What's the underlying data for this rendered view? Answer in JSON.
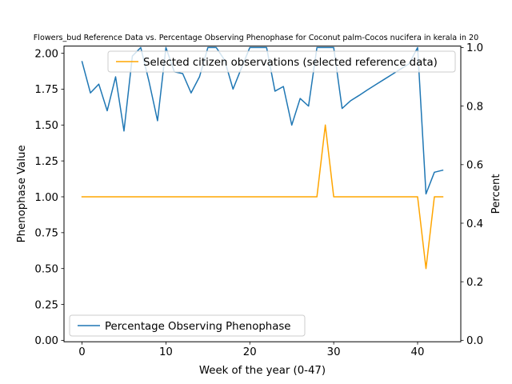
{
  "chart_data": {
    "type": "line",
    "title": "Flowers_bud Reference Data vs. Percentage Observing Phenophase for Coconut palm-Cocos nucifera in kerala in 20",
    "xlabel": "Week of the year (0-47)",
    "ylabel_left": "Phenophase Value",
    "ylabel_right": "Percent",
    "xlim": [
      -2.15,
      45.15
    ],
    "ylim_left": [
      -0.01,
      2.05
    ],
    "ylim_right": [
      -0.005,
      1.005
    ],
    "x_ticks": [
      0,
      10,
      20,
      30,
      40
    ],
    "y_ticks_left": [
      0.0,
      0.25,
      0.5,
      0.75,
      1.0,
      1.25,
      1.5,
      1.75,
      2.0
    ],
    "y_ticks_right": [
      0.0,
      0.2,
      0.4,
      0.6,
      0.8,
      1.0
    ],
    "x_tick_labels": [
      "0",
      "10",
      "20",
      "30",
      "40"
    ],
    "y_tick_labels_left": [
      "0.00",
      "0.25",
      "0.50",
      "0.75",
      "1.00",
      "1.25",
      "1.50",
      "1.75",
      "2.00"
    ],
    "y_tick_labels_right": [
      "0.0",
      "0.2",
      "0.4",
      "0.6",
      "0.8",
      "1.0"
    ],
    "grid": false,
    "series": [
      {
        "name": "Selected citizen observations (selected reference data)",
        "axis": "left",
        "color": "#ffa500",
        "legend_position": "upper-right",
        "x": [
          0,
          1,
          2,
          3,
          4,
          5,
          6,
          7,
          8,
          9,
          10,
          11,
          12,
          13,
          14,
          15,
          16,
          17,
          18,
          19,
          20,
          21,
          22,
          23,
          24,
          25,
          26,
          27,
          28,
          29,
          30,
          31,
          32,
          33,
          34,
          35,
          36,
          37,
          38,
          39,
          40,
          41,
          42,
          43
        ],
        "values": [
          1,
          1,
          1,
          1,
          1,
          1,
          1,
          1,
          1,
          1,
          1,
          1,
          1,
          1,
          1,
          1,
          1,
          1,
          1,
          1,
          1,
          1,
          1,
          1,
          1,
          1,
          1,
          1,
          1,
          1.5,
          1,
          1,
          1,
          1,
          1,
          1,
          1,
          1,
          1,
          1,
          1,
          0.5,
          1,
          1
        ]
      },
      {
        "name": "Percentage Observing Phenophase",
        "axis": "right",
        "color": "#1f77b4",
        "legend_position": "lower-left",
        "x": [
          0,
          1,
          2,
          3,
          4,
          5,
          6,
          7,
          8,
          9,
          10,
          11,
          12,
          13,
          14,
          15,
          16,
          17,
          18,
          19,
          20,
          21,
          22,
          23,
          24,
          25,
          26,
          27,
          28,
          29,
          30,
          31,
          32,
          33,
          34,
          35,
          36,
          37,
          38,
          39,
          40,
          41,
          42,
          43
        ],
        "values": [
          0.952,
          0.845,
          0.875,
          0.784,
          0.9,
          0.715,
          0.971,
          1.0,
          0.882,
          0.75,
          1.0,
          0.917,
          0.911,
          0.845,
          0.9,
          1.0,
          1.0,
          0.957,
          0.858,
          0.93,
          1.0,
          1.0,
          1.0,
          0.851,
          0.867,
          0.735,
          0.826,
          0.8,
          1.0,
          1.0,
          1.0,
          0.792,
          0.818,
          0.836,
          0.855,
          0.873,
          0.891,
          0.909,
          0.927,
          0.945,
          1.0,
          0.5,
          0.574,
          0.581
        ]
      }
    ]
  }
}
